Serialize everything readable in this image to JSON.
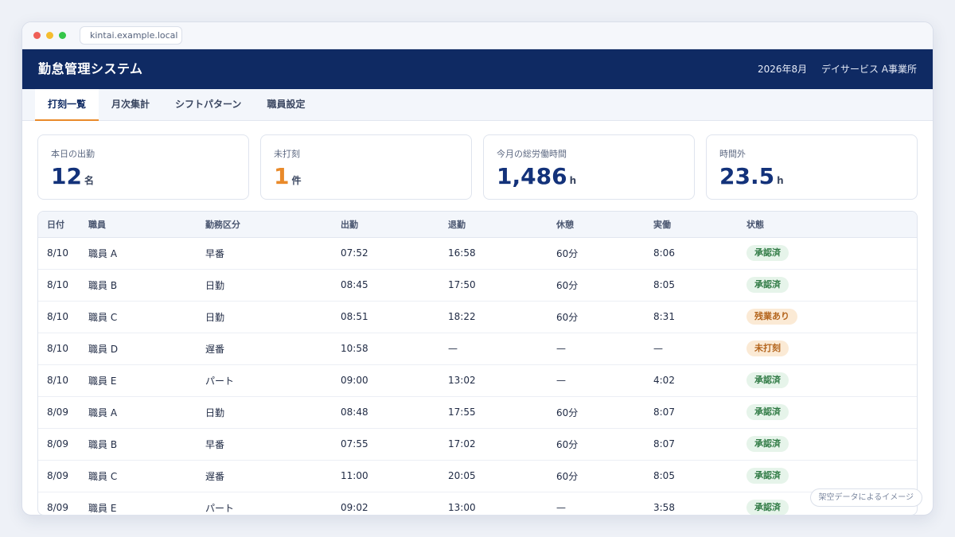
{
  "browser": {
    "url": "kintai.example.local"
  },
  "header": {
    "title": "勤怠管理システム",
    "period": "2026年8月",
    "office": "デイサービス A事業所"
  },
  "tabs": [
    {
      "label": "打刻一覧",
      "active": true
    },
    {
      "label": "月次集計",
      "active": false
    },
    {
      "label": "シフトパターン",
      "active": false
    },
    {
      "label": "職員設定",
      "active": false
    }
  ],
  "cards": [
    {
      "label": "本日の出勤",
      "value": "12",
      "unit": "名"
    },
    {
      "label": "未打刻",
      "value": "1",
      "unit": "件"
    },
    {
      "label": "今月の総労働時間",
      "value": "1,486",
      "unit": "h"
    },
    {
      "label": "時間外",
      "value": "23.5",
      "unit": "h"
    }
  ],
  "table": {
    "headers": [
      "日付",
      "職員",
      "勤務区分",
      "出勤",
      "退勤",
      "休憩",
      "実働",
      "状態"
    ],
    "rows": [
      [
        "8/10",
        "職員 A",
        "早番",
        "07:52",
        "16:58",
        "60分",
        "8:06",
        "承認済"
      ],
      [
        "8/10",
        "職員 B",
        "日勤",
        "08:45",
        "17:50",
        "60分",
        "8:05",
        "承認済"
      ],
      [
        "8/10",
        "職員 C",
        "日勤",
        "08:51",
        "18:22",
        "60分",
        "8:31",
        "残業あり"
      ],
      [
        "8/10",
        "職員 D",
        "遅番",
        "10:58",
        "—",
        "—",
        "—",
        "未打刻"
      ],
      [
        "8/10",
        "職員 E",
        "パート",
        "09:00",
        "13:02",
        "—",
        "4:02",
        "承認済"
      ],
      [
        "8/09",
        "職員 A",
        "日勤",
        "08:48",
        "17:55",
        "60分",
        "8:07",
        "承認済"
      ],
      [
        "8/09",
        "職員 B",
        "早番",
        "07:55",
        "17:02",
        "60分",
        "8:07",
        "承認済"
      ],
      [
        "8/09",
        "職員 C",
        "遅番",
        "11:00",
        "20:05",
        "60分",
        "8:05",
        "承認済"
      ],
      [
        "8/09",
        "職員 E",
        "パート",
        "09:02",
        "13:00",
        "—",
        "3:58",
        "承認済"
      ]
    ]
  },
  "watermark": "架空データによるイメージ"
}
